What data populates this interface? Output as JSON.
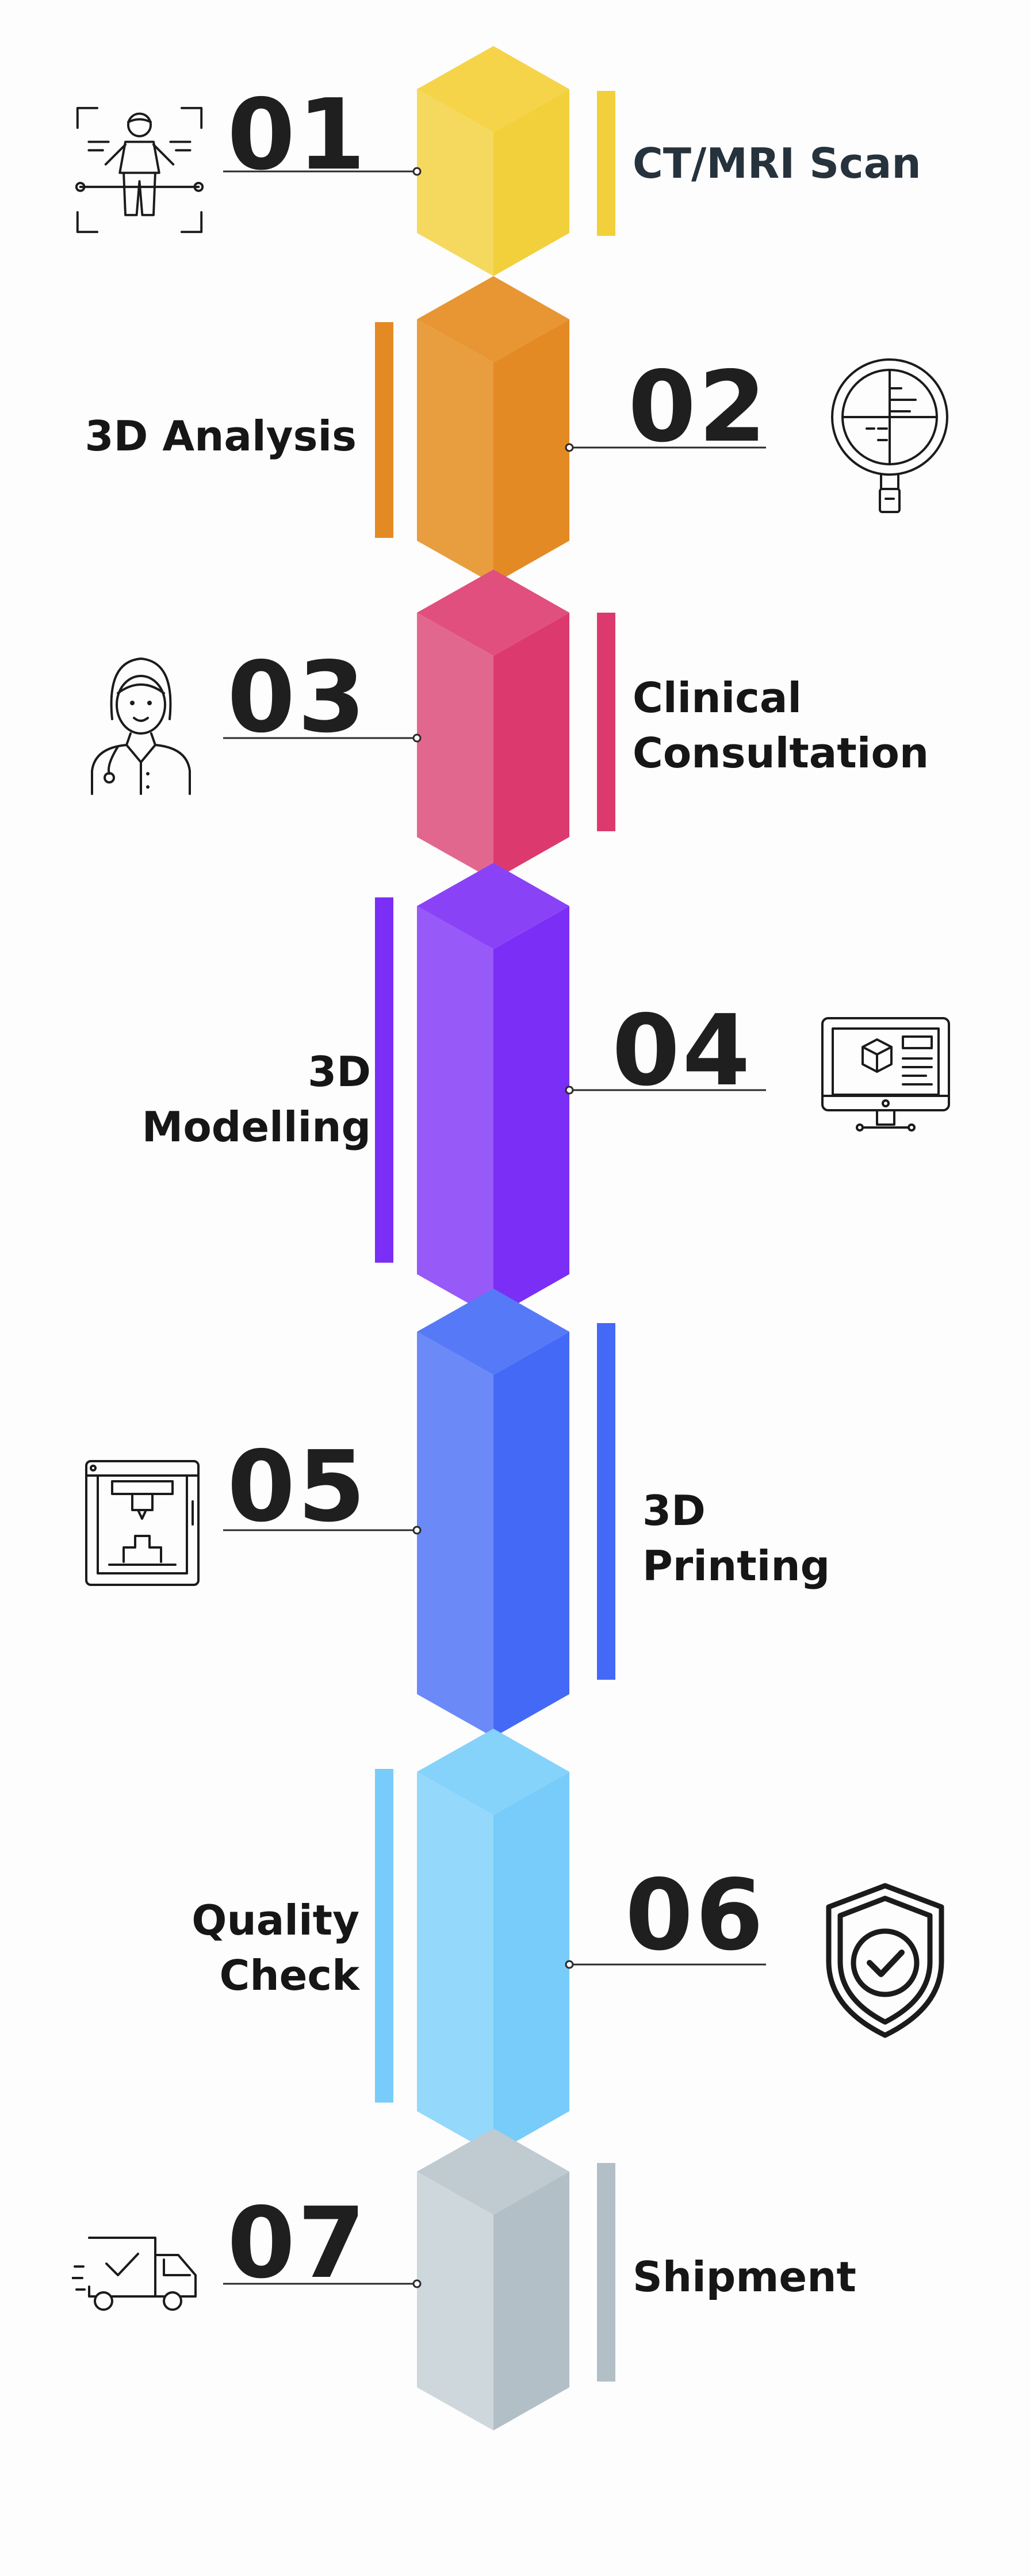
{
  "steps": [
    {
      "number": "01",
      "label": "CT/MRI Scan",
      "color": "#f2d03b",
      "color_light": "#f5d95f",
      "color_top": "#f5d449",
      "icon": "body-scan-icon"
    },
    {
      "number": "02",
      "label": "3D Analysis",
      "color": "#e48a25",
      "color_light": "#e89d3e",
      "color_top": "#e79633",
      "icon": "magnifier-analysis-icon"
    },
    {
      "number": "03",
      "label": "Clinical Consultation",
      "label_lines": [
        "Clinical",
        "Consultation"
      ],
      "color": "#dc3a6e",
      "color_light": "#e2678f",
      "color_top": "#e04f7e",
      "icon": "doctor-icon"
    },
    {
      "number": "04",
      "label": "3D Modelling",
      "label_lines": [
        "3D",
        "Modelling"
      ],
      "color": "#7b2ef5",
      "color_light": "#9759f8",
      "color_top": "#8a42f7",
      "icon": "computer-3d-model-icon"
    },
    {
      "number": "05",
      "label": "3D Printing",
      "label_lines": [
        "3D",
        "Printing"
      ],
      "color": "#4469f6",
      "color_light": "#6b8af8",
      "color_top": "#5679f7",
      "icon": "3d-printer-icon"
    },
    {
      "number": "06",
      "label": "Quality Check",
      "label_lines": [
        "Quality",
        "Check"
      ],
      "color": "#78ccfa",
      "color_light": "#94d8fb",
      "color_top": "#85d2fb",
      "icon": "shield-check-icon"
    },
    {
      "number": "07",
      "label": "Shipment",
      "color": "#b2bfc7",
      "color_light": "#ced7dc",
      "color_top": "#bfcad1",
      "icon": "delivery-truck-icon"
    }
  ]
}
